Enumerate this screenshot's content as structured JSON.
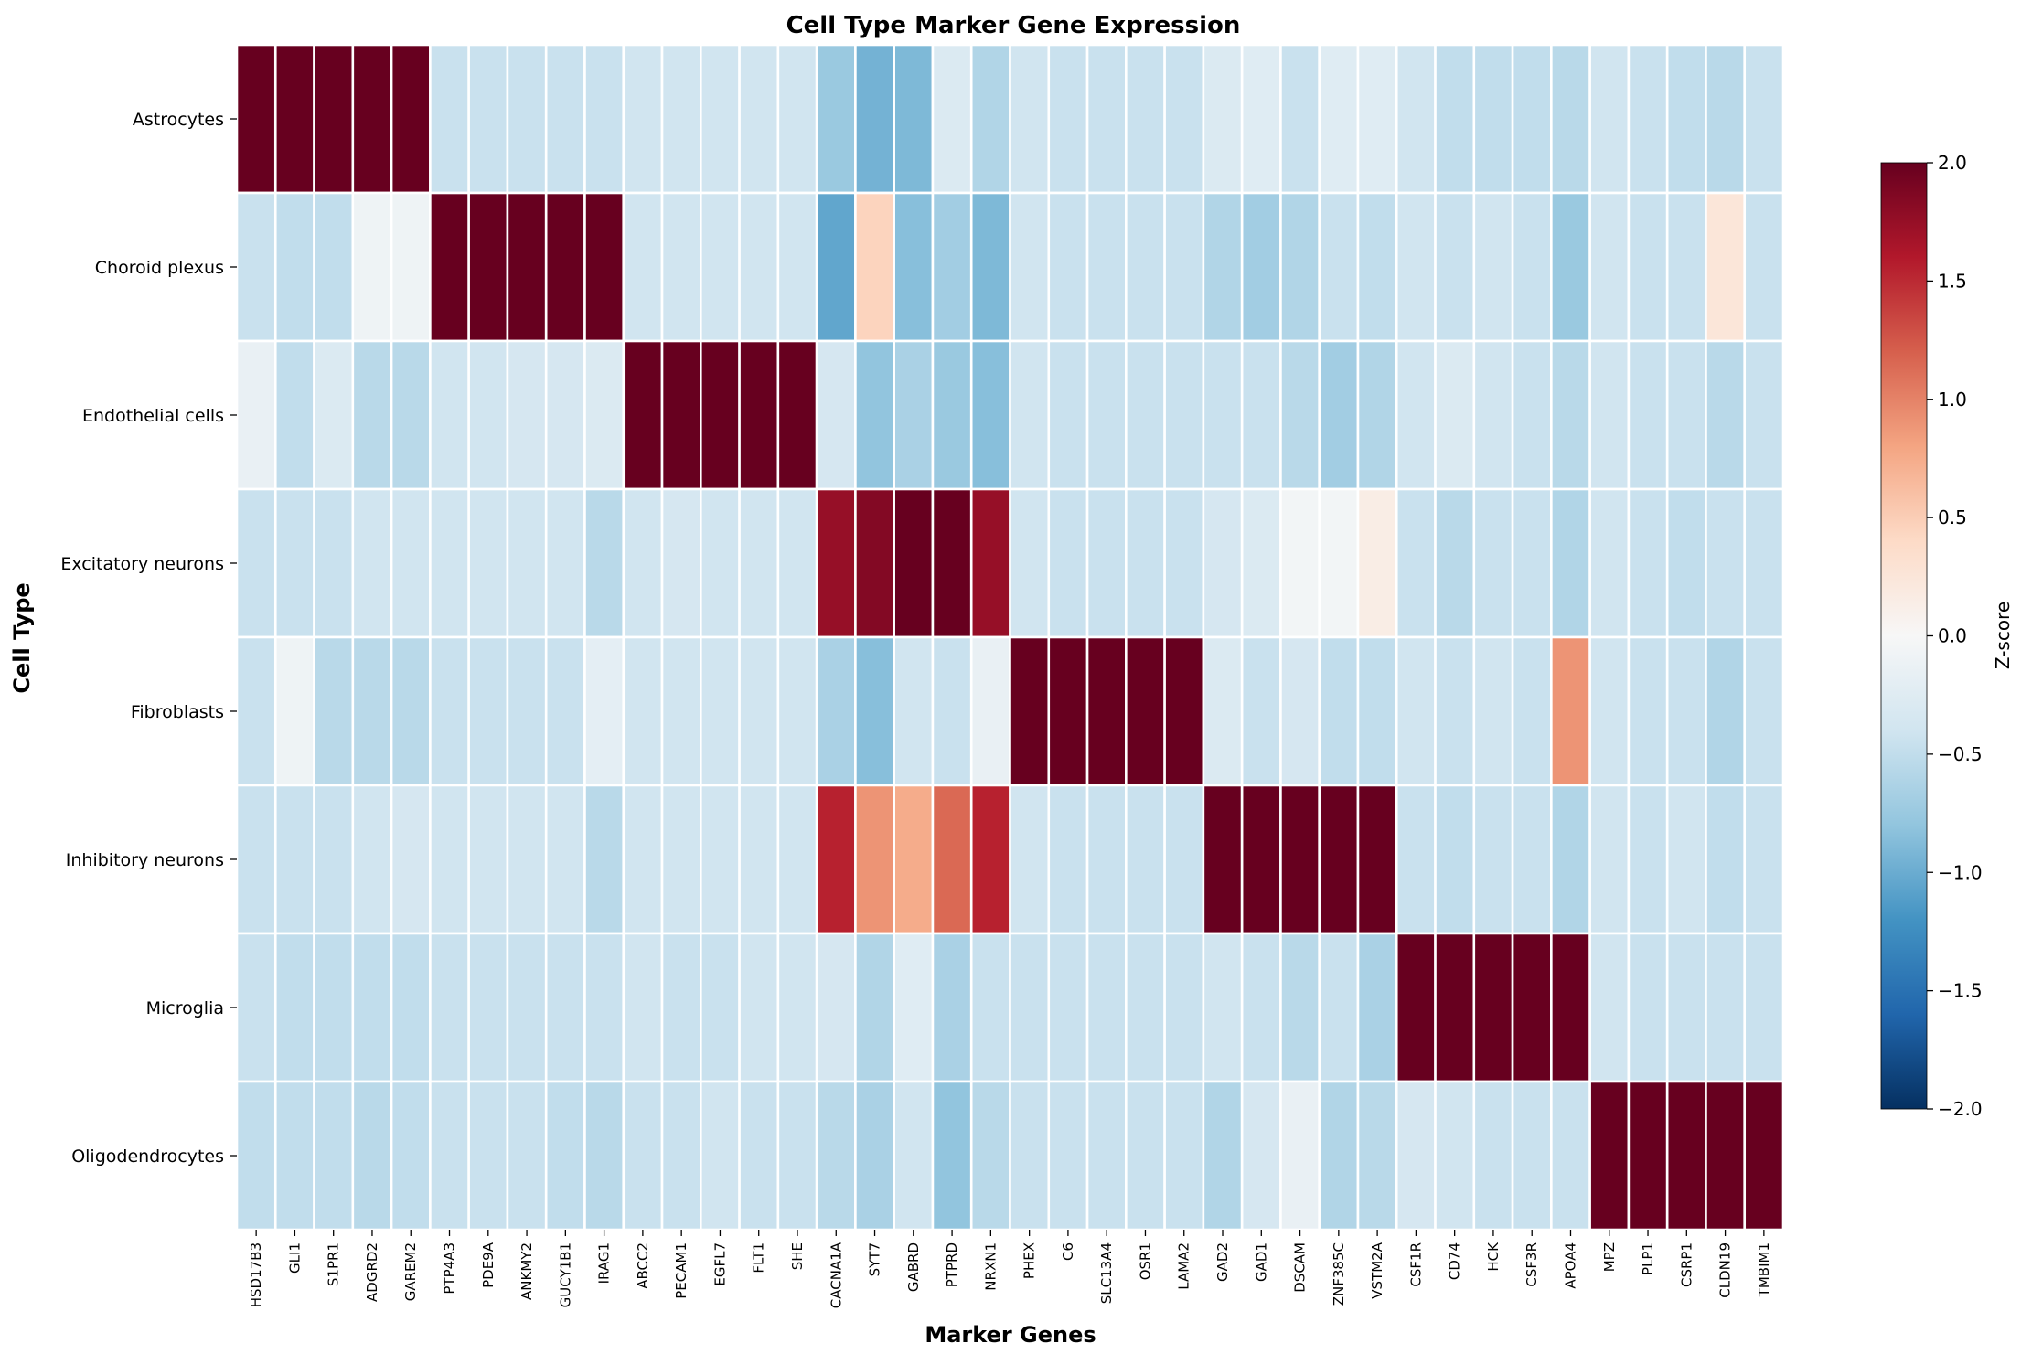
{
  "chart_data": {
    "type": "heatmap",
    "title": "Cell Type Marker Gene Expression",
    "xlabel": "Marker Genes",
    "ylabel": "Cell Type",
    "colorbar_label": "Z-score",
    "colormap": "RdBu_r",
    "vmin": -2.0,
    "vmax": 2.0,
    "colorbar_ticks": [
      "2.0",
      "1.5",
      "1.0",
      "0.5",
      "0.0",
      "−0.5",
      "−1.0",
      "−1.5",
      "−2.0"
    ],
    "colorbar_tick_values": [
      2.0,
      1.5,
      1.0,
      0.5,
      0.0,
      -0.5,
      -1.0,
      -1.5,
      -2.0
    ],
    "rows": [
      "Astrocytes",
      "Choroid plexus",
      "Endothelial cells",
      "Excitatory neurons",
      "Fibroblasts",
      "Inhibitory neurons",
      "Microglia",
      "Oligodendrocytes"
    ],
    "columns": [
      "HSD17B3",
      "GLI1",
      "S1PR1",
      "ADGRD2",
      "GAREM2",
      "PTP4A3",
      "PDE9A",
      "ANKMY2",
      "GUCY1B1",
      "IRAG1",
      "ABCC2",
      "PECAM1",
      "EGFL7",
      "FLT1",
      "SHE",
      "CACNA1A",
      "SYT7",
      "GABRD",
      "PTPRD",
      "NRXN1",
      "PHEX",
      "C6",
      "SLC13A4",
      "OSR1",
      "LAMA2",
      "GAD2",
      "GAD1",
      "DSCAM",
      "ZNF385C",
      "VSTM2A",
      "CSF1R",
      "CD74",
      "HCK",
      "CSF3R",
      "APOA4",
      "MPZ",
      "PLP1",
      "CSRP1",
      "CLDN19",
      "TMBIM1"
    ],
    "values": [
      [
        2.0,
        2.0,
        2.0,
        2.0,
        2.0,
        -0.45,
        -0.45,
        -0.45,
        -0.45,
        -0.45,
        -0.4,
        -0.4,
        -0.4,
        -0.4,
        -0.4,
        -0.75,
        -0.95,
        -0.9,
        -0.3,
        -0.6,
        -0.4,
        -0.45,
        -0.45,
        -0.45,
        -0.45,
        -0.3,
        -0.25,
        -0.45,
        -0.25,
        -0.25,
        -0.4,
        -0.5,
        -0.5,
        -0.5,
        -0.55,
        -0.4,
        -0.45,
        -0.5,
        -0.55,
        -0.45
      ],
      [
        -0.45,
        -0.5,
        -0.5,
        -0.1,
        -0.1,
        2.0,
        2.0,
        2.0,
        2.0,
        2.0,
        -0.4,
        -0.4,
        -0.4,
        -0.4,
        -0.4,
        -1.05,
        0.45,
        -0.85,
        -0.7,
        -0.9,
        -0.4,
        -0.45,
        -0.45,
        -0.45,
        -0.45,
        -0.6,
        -0.7,
        -0.6,
        -0.45,
        -0.5,
        -0.4,
        -0.45,
        -0.4,
        -0.45,
        -0.75,
        -0.4,
        -0.45,
        -0.45,
        0.25,
        -0.45
      ],
      [
        -0.15,
        -0.5,
        -0.3,
        -0.55,
        -0.55,
        -0.4,
        -0.4,
        -0.35,
        -0.35,
        -0.3,
        2.0,
        2.0,
        2.0,
        2.0,
        2.0,
        -0.35,
        -0.8,
        -0.65,
        -0.75,
        -0.85,
        -0.4,
        -0.45,
        -0.45,
        -0.45,
        -0.45,
        -0.45,
        -0.45,
        -0.55,
        -0.7,
        -0.6,
        -0.4,
        -0.3,
        -0.4,
        -0.45,
        -0.55,
        -0.4,
        -0.45,
        -0.45,
        -0.55,
        -0.45
      ],
      [
        -0.45,
        -0.45,
        -0.45,
        -0.4,
        -0.4,
        -0.4,
        -0.4,
        -0.4,
        -0.4,
        -0.55,
        -0.4,
        -0.35,
        -0.4,
        -0.4,
        -0.4,
        1.75,
        1.85,
        2.0,
        2.0,
        1.75,
        -0.4,
        -0.45,
        -0.45,
        -0.45,
        -0.45,
        -0.35,
        -0.3,
        -0.05,
        -0.05,
        0.15,
        -0.45,
        -0.55,
        -0.45,
        -0.45,
        -0.6,
        -0.4,
        -0.45,
        -0.5,
        -0.45,
        -0.45
      ],
      [
        -0.45,
        -0.1,
        -0.55,
        -0.55,
        -0.55,
        -0.45,
        -0.45,
        -0.45,
        -0.45,
        -0.2,
        -0.4,
        -0.4,
        -0.4,
        -0.4,
        -0.4,
        -0.65,
        -0.85,
        -0.4,
        -0.45,
        -0.15,
        2.0,
        2.0,
        2.0,
        2.0,
        2.0,
        -0.3,
        -0.45,
        -0.35,
        -0.5,
        -0.5,
        -0.4,
        -0.45,
        -0.4,
        -0.45,
        0.9,
        -0.4,
        -0.45,
        -0.45,
        -0.6,
        -0.45
      ],
      [
        -0.45,
        -0.45,
        -0.45,
        -0.4,
        -0.35,
        -0.4,
        -0.4,
        -0.4,
        -0.4,
        -0.55,
        -0.4,
        -0.4,
        -0.4,
        -0.4,
        -0.4,
        1.55,
        0.9,
        0.75,
        1.15,
        1.55,
        -0.4,
        -0.45,
        -0.45,
        -0.45,
        -0.45,
        2.0,
        2.0,
        2.0,
        2.0,
        2.0,
        -0.45,
        -0.5,
        -0.45,
        -0.45,
        -0.6,
        -0.4,
        -0.45,
        -0.4,
        -0.5,
        -0.45
      ],
      [
        -0.45,
        -0.5,
        -0.5,
        -0.5,
        -0.5,
        -0.45,
        -0.45,
        -0.45,
        -0.45,
        -0.45,
        -0.4,
        -0.45,
        -0.45,
        -0.4,
        -0.4,
        -0.35,
        -0.6,
        -0.25,
        -0.65,
        -0.45,
        -0.45,
        -0.45,
        -0.45,
        -0.45,
        -0.45,
        -0.4,
        -0.45,
        -0.55,
        -0.45,
        -0.65,
        2.0,
        2.0,
        2.0,
        2.0,
        2.0,
        -0.4,
        -0.45,
        -0.45,
        -0.45,
        -0.45
      ],
      [
        -0.5,
        -0.5,
        -0.5,
        -0.55,
        -0.5,
        -0.45,
        -0.45,
        -0.45,
        -0.5,
        -0.55,
        -0.45,
        -0.45,
        -0.4,
        -0.45,
        -0.45,
        -0.55,
        -0.65,
        -0.4,
        -0.8,
        -0.55,
        -0.45,
        -0.45,
        -0.45,
        -0.45,
        -0.45,
        -0.6,
        -0.35,
        -0.15,
        -0.6,
        -0.55,
        -0.35,
        -0.4,
        -0.45,
        -0.45,
        -0.45,
        2.0,
        2.0,
        2.0,
        2.0,
        2.0
      ]
    ]
  }
}
